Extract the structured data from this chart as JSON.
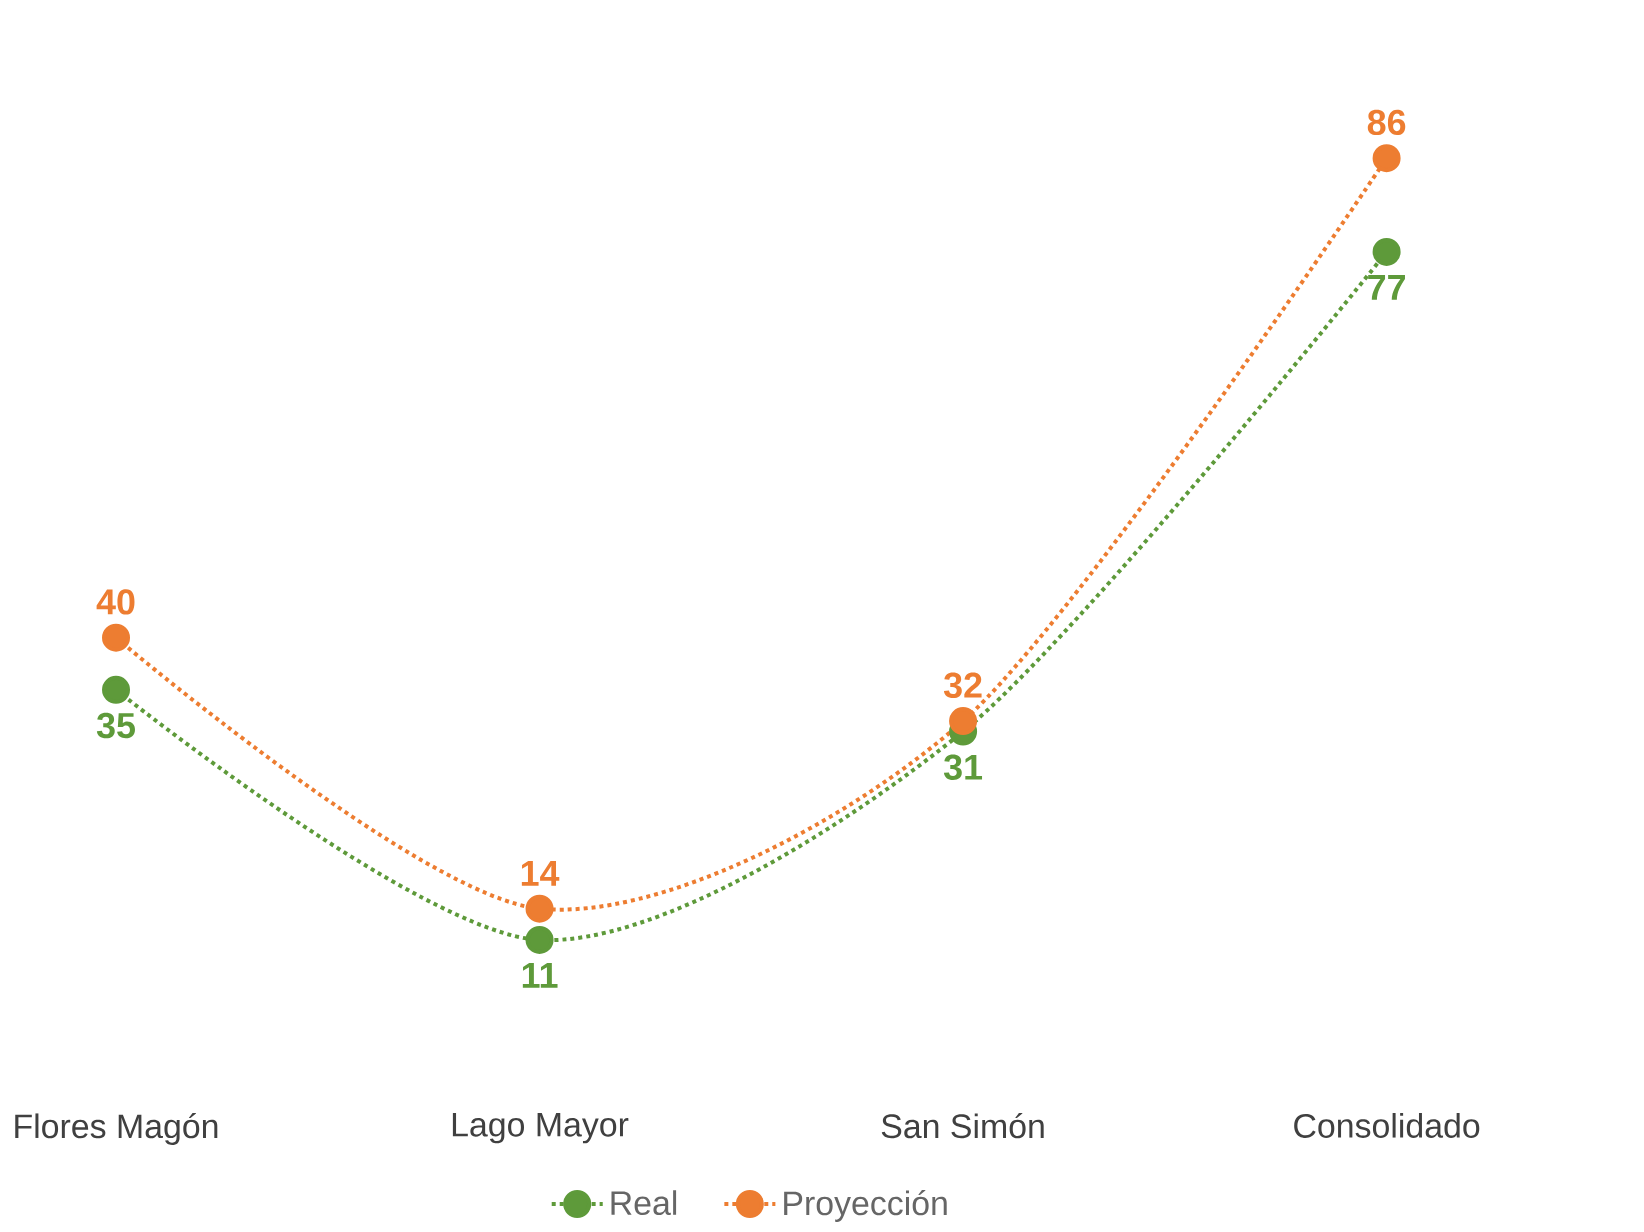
{
  "chart_data": {
    "type": "line",
    "categories": [
      "Flores Magón",
      "Lago Mayor",
      "San Simón",
      "Consolidado"
    ],
    "series": [
      {
        "name": "Real",
        "color": "#5e9a3a",
        "values": [
          35,
          11,
          31,
          77
        ],
        "value_labels": [
          "35",
          "11",
          "31",
          "77"
        ]
      },
      {
        "name": "Proyección",
        "color": "#ed7d31",
        "values": [
          40,
          14,
          32,
          86
        ],
        "value_labels": [
          "40",
          "14",
          "32",
          "86"
        ]
      }
    ],
    "tick_labels": "x",
    "legend": "bottom",
    "marker": "circle",
    "line_style": "dotted"
  }
}
